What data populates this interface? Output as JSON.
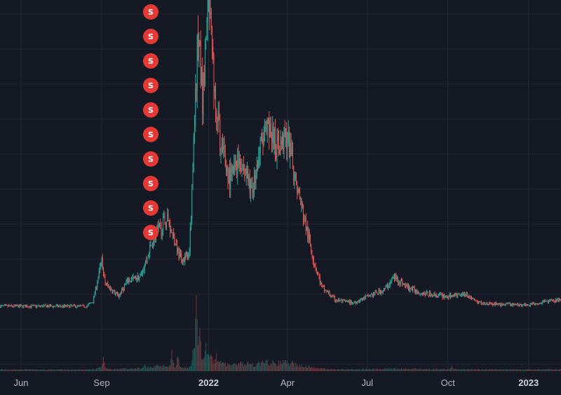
{
  "chart_data": {
    "type": "candlestick",
    "title": "",
    "xlabel": "",
    "ylabel": "",
    "grid": true,
    "colors": {
      "up": "#26a69a",
      "down": "#ef5350",
      "background": "#151924",
      "grid": "#232734",
      "marker": "#e53935"
    },
    "x_ticks": [
      {
        "label": "Jun",
        "date": "2021-06-01"
      },
      {
        "label": "Sep",
        "date": "2021-09-01"
      },
      {
        "label": "2022",
        "date": "2022-01-01",
        "bold": true
      },
      {
        "label": "Apr",
        "date": "2022-04-01"
      },
      {
        "label": "Jul",
        "date": "2022-07-01"
      },
      {
        "label": "Oct",
        "date": "2022-10-01"
      },
      {
        "label": "2023",
        "date": "2023-01-01",
        "bold": true
      }
    ],
    "x_range": [
      "2021-05-08",
      "2023-02-07"
    ],
    "y_range": [
      0,
      100
    ],
    "price_anchors": [
      [
        "2021-05-08",
        6
      ],
      [
        "2021-08-15",
        6
      ],
      [
        "2021-08-22",
        7.5
      ],
      [
        "2021-09-01",
        20
      ],
      [
        "2021-09-05",
        13
      ],
      [
        "2021-09-20",
        9
      ],
      [
        "2021-10-01",
        14
      ],
      [
        "2021-10-15",
        15
      ],
      [
        "2021-11-01",
        28
      ],
      [
        "2021-11-15",
        33
      ],
      [
        "2021-12-01",
        20
      ],
      [
        "2021-12-10",
        22
      ],
      [
        "2021-12-15",
        55
      ],
      [
        "2021-12-20",
        92
      ],
      [
        "2021-12-25",
        70
      ],
      [
        "2022-01-01",
        100
      ],
      [
        "2022-01-07",
        75
      ],
      [
        "2022-01-15",
        55
      ],
      [
        "2022-01-25",
        45
      ],
      [
        "2022-02-05",
        52
      ],
      [
        "2022-02-20",
        42
      ],
      [
        "2022-03-01",
        55
      ],
      [
        "2022-03-10",
        60
      ],
      [
        "2022-03-20",
        55
      ],
      [
        "2022-04-01",
        58
      ],
      [
        "2022-04-10",
        45
      ],
      [
        "2022-04-20",
        33
      ],
      [
        "2022-05-01",
        20
      ],
      [
        "2022-05-10",
        12
      ],
      [
        "2022-05-25",
        8
      ],
      [
        "2022-06-15",
        7
      ],
      [
        "2022-07-01",
        9
      ],
      [
        "2022-07-20",
        11
      ],
      [
        "2022-08-01",
        15
      ],
      [
        "2022-08-15",
        12
      ],
      [
        "2022-09-01",
        10
      ],
      [
        "2022-10-01",
        9
      ],
      [
        "2022-10-20",
        10
      ],
      [
        "2022-11-05",
        7
      ],
      [
        "2022-12-01",
        6.5
      ],
      [
        "2023-01-01",
        6.5
      ],
      [
        "2023-01-20",
        7.5
      ],
      [
        "2023-02-07",
        8
      ]
    ],
    "volume_spikes": [
      [
        "2021-09-03",
        18
      ],
      [
        "2021-10-20",
        9
      ],
      [
        "2021-11-20",
        28
      ],
      [
        "2021-11-27",
        23
      ],
      [
        "2021-12-15",
        40
      ],
      [
        "2021-12-18",
        100
      ],
      [
        "2021-12-22",
        58
      ],
      [
        "2021-12-29",
        35
      ],
      [
        "2022-01-03",
        28
      ],
      [
        "2022-01-10",
        20
      ],
      [
        "2022-02-15",
        12
      ],
      [
        "2022-03-15",
        12
      ],
      [
        "2022-04-05",
        9
      ],
      [
        "2022-10-05",
        8
      ]
    ],
    "markers": {
      "symbol": "S",
      "date": "2021-10-27",
      "count": 10
    }
  }
}
